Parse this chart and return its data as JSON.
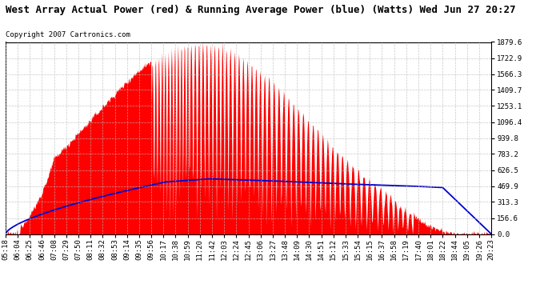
{
  "title": "West Array Actual Power (red) & Running Average Power (blue) (Watts) Wed Jun 27 20:27",
  "copyright": "Copyright 2007 Cartronics.com",
  "ytick_values": [
    0.0,
    156.6,
    313.3,
    469.9,
    626.5,
    783.2,
    939.8,
    1096.4,
    1253.1,
    1409.7,
    1566.3,
    1722.9,
    1879.6
  ],
  "ymax": 1879.6,
  "background_color": "#ffffff",
  "fill_color": "#ff0000",
  "line_color": "#0000cc",
  "grid_color": "#bbbbbb",
  "title_fontsize": 9,
  "copyright_fontsize": 6.5,
  "tick_fontsize": 6.5,
  "xtick_labels": [
    "05:18",
    "06:04",
    "06:25",
    "06:46",
    "07:08",
    "07:29",
    "07:50",
    "08:11",
    "08:32",
    "08:53",
    "09:14",
    "09:35",
    "09:56",
    "10:17",
    "10:38",
    "10:59",
    "11:20",
    "11:42",
    "12:03",
    "12:24",
    "12:45",
    "13:06",
    "13:27",
    "13:48",
    "14:09",
    "14:30",
    "14:51",
    "15:12",
    "15:33",
    "15:54",
    "16:15",
    "16:37",
    "16:58",
    "17:19",
    "17:40",
    "18:01",
    "18:22",
    "18:44",
    "19:05",
    "19:26",
    "20:23"
  ]
}
